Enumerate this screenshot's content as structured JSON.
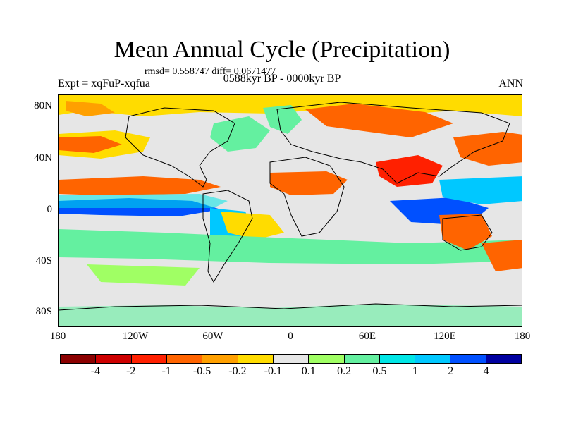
{
  "title": "Mean Annual Cycle (Precipitation)",
  "stats": "rmsd= 0.558747 diff= 0.0671477",
  "experiment": "Expt = xqFuP-xqfua",
  "period": "0588kyr BP - 0000kyr BP",
  "season": "ANN",
  "y_axis_labels": [
    "80N",
    "40N",
    "0",
    "40S",
    "80S"
  ],
  "x_axis_labels": [
    "180",
    "120W",
    "60W",
    "0",
    "60E",
    "120E",
    "180"
  ],
  "colorbar": {
    "colors": [
      "#8b0000",
      "#cd0000",
      "#ff2000",
      "#ff6400",
      "#ffa000",
      "#ffdc00",
      "#e6e6e6",
      "#a0ff64",
      "#64f0a0",
      "#00e6e6",
      "#00c8ff",
      "#0050ff",
      "#0000a0"
    ],
    "labels": [
      "-4",
      "-2",
      "-1",
      "-0.5",
      "-0.2",
      "-0.1",
      "0.1",
      "0.2",
      "0.5",
      "1",
      "2",
      "4"
    ]
  },
  "map_colors": {
    "background": "#e6e6e6",
    "orange": "#ff6400",
    "yellow": "#ffdc00",
    "amber": "#ffa000",
    "red": "#ff2000",
    "green": "#64f0a0",
    "lime": "#a0ff64",
    "cyan": "#00e6e6",
    "lightblue": "#00c8ff",
    "blue": "#0050ff",
    "coast": "#000000"
  }
}
